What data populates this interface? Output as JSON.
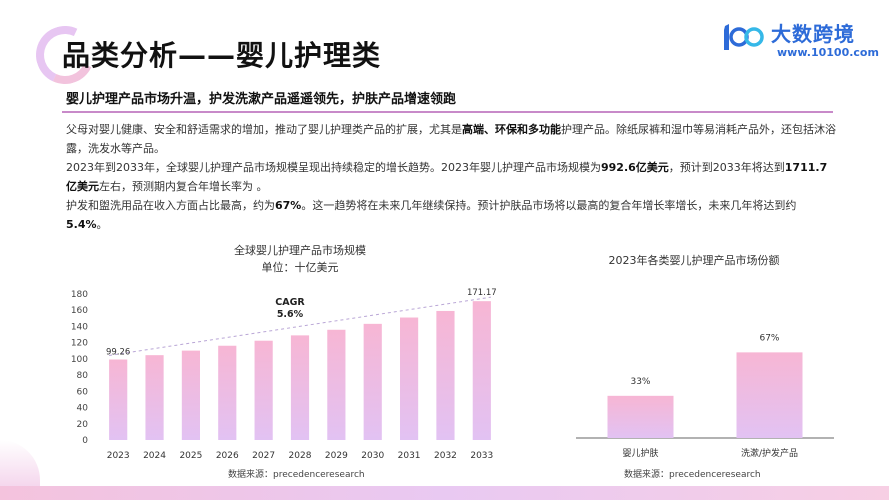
{
  "header": {
    "title": "品类分析——婴儿护理类",
    "subtitle": "婴儿护理产品市场升温，护发洗漱产品遥遥领先，护肤产品增速领跑"
  },
  "logo": {
    "name": "大数跨境",
    "url": "www.10100.com"
  },
  "body": {
    "p1_a": "父母对婴儿健康、安全和舒适需求的增加，推动了婴儿护理类产品的扩展，尤其是",
    "p1_b": "高端、环保和多功能",
    "p1_c": "护理产品。除纸尿裤和湿巾等易消耗产品外，还包括沐浴露，洗发水等产品。",
    "p2_a": "2023年到2033年，全球婴儿护理产品市场规模呈现出持续稳定的增长趋势。2023年婴儿护理产品市场规模为",
    "p2_b": "992.6亿美元",
    "p2_c": "，预计到2033年将达到",
    "p2_d": "1711.7亿美元",
    "p2_e": "左右，预测期内复合年增长率为 。",
    "p3_a": "护发和盥洗用品在收入方面占比最高，约为",
    "p3_b": "67%",
    "p3_c": "。这一趋势将在未来几年继续保持。预计护肤品市场将以最高的复合年增长率增长，未来几年将达到约",
    "p3_d": "5.4%",
    "p3_e": "。"
  },
  "colors": {
    "accent": "#c88ac9",
    "bar_top": "#f7b6d4",
    "bar_bottom": "#e2c2f3",
    "logo_blue": "#2d6bd8"
  },
  "chart_data": [
    {
      "type": "bar",
      "title": "全球婴儿护理产品市场规模",
      "subtitle": "单位：十亿美元",
      "categories": [
        "2023",
        "2024",
        "2025",
        "2026",
        "2027",
        "2028",
        "2029",
        "2030",
        "2031",
        "2032",
        "2033"
      ],
      "values": [
        99.26,
        104.6,
        110.2,
        116.2,
        122.4,
        129,
        135.9,
        143.2,
        151,
        159.1,
        171.17
      ],
      "value_labels": {
        "first": "99.26",
        "last": "171.17"
      },
      "annotation": {
        "label": "CAGR",
        "value": "5.6%"
      },
      "yticks": [
        "0",
        "20",
        "40",
        "60",
        "80",
        "100",
        "120",
        "140",
        "160",
        "180"
      ],
      "ylim": [
        0,
        180
      ],
      "grid": false,
      "source": "数据来源：precedenceresearch"
    },
    {
      "type": "bar",
      "title": "2023年各类婴儿护理产品市场份额",
      "categories": [
        "婴儿护肤",
        "洗漱/护发产品"
      ],
      "values": [
        33,
        67
      ],
      "value_labels": [
        "33%",
        "67%"
      ],
      "ylim": [
        0,
        100
      ],
      "source": "数据来源：precedenceresearch"
    }
  ]
}
